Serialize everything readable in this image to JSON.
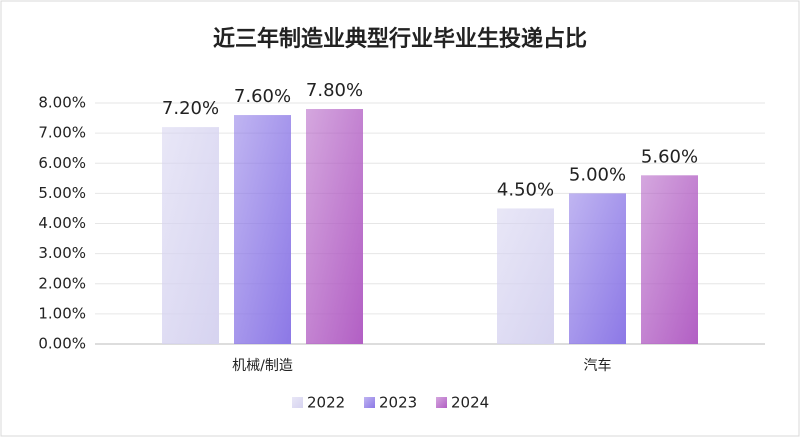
{
  "chart_data": {
    "type": "bar",
    "title": "近三年制造业典型行业毕业生投递占比",
    "categories": [
      "机械/制造",
      "汽车"
    ],
    "series": [
      {
        "name": "2022",
        "color": "#d6d3f0",
        "values": [
          7.2,
          4.5
        ],
        "value_labels": [
          "7.20%",
          "4.50%"
        ]
      },
      {
        "name": "2023",
        "color": "#8c78e6",
        "values": [
          7.6,
          5.0
        ],
        "value_labels": [
          "7.60%",
          "5.00%"
        ]
      },
      {
        "name": "2024",
        "color": "#b25fc4",
        "values": [
          7.8,
          5.6
        ],
        "value_labels": [
          "7.80%",
          "5.60%"
        ]
      }
    ],
    "ylim": [
      0,
      8
    ],
    "yticks": [
      {
        "value": 0,
        "label": "0.00%"
      },
      {
        "value": 1,
        "label": "1.00%"
      },
      {
        "value": 2,
        "label": "2.00%"
      },
      {
        "value": 3,
        "label": "3.00%"
      },
      {
        "value": 4,
        "label": "4.00%"
      },
      {
        "value": 5,
        "label": "5.00%"
      },
      {
        "value": 6,
        "label": "6.00%"
      },
      {
        "value": 7,
        "label": "7.00%"
      },
      {
        "value": 8,
        "label": "8.00%"
      }
    ],
    "grid": true,
    "legend": "bottom"
  }
}
